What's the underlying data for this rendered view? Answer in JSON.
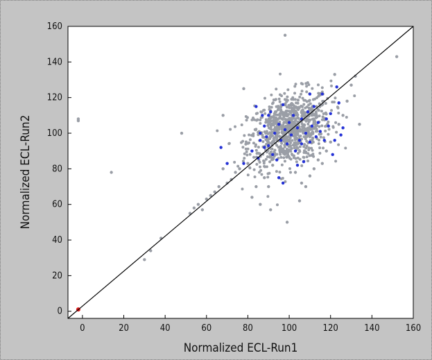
{
  "chart_data": {
    "type": "scatter",
    "title": "",
    "xlabel": "Normalized  ECL-Run1",
    "ylabel": "Normalized  ECL-Run2",
    "xlim": [
      -7,
      160
    ],
    "ylim": [
      -4,
      160
    ],
    "xticks": [
      "0",
      "20",
      "40",
      "60",
      "80",
      "100",
      "120",
      "140",
      "160"
    ],
    "yticks": [
      "0",
      "20",
      "40",
      "60",
      "80",
      "100",
      "120",
      "140",
      "160"
    ],
    "grid": false,
    "reference_line": {
      "from": [
        -7,
        -4
      ],
      "to": [
        160,
        160
      ],
      "color": "#000000"
    },
    "series": [
      {
        "color": "#9a9ea6",
        "description_points": "dense cloud centered near (100,100)",
        "points": [
          [
            -2,
            108
          ],
          [
            -2,
            107
          ],
          [
            14,
            78
          ],
          [
            30,
            29
          ],
          [
            33,
            34
          ],
          [
            38,
            41
          ],
          [
            48,
            100
          ],
          [
            52,
            55
          ],
          [
            54,
            58
          ],
          [
            56,
            60
          ],
          [
            58,
            57
          ],
          [
            60,
            63
          ],
          [
            62,
            65
          ],
          [
            64,
            67
          ],
          [
            66,
            70
          ],
          [
            68,
            80
          ],
          [
            68,
            110
          ],
          [
            70,
            72
          ],
          [
            72,
            74
          ],
          [
            74,
            78
          ],
          [
            76,
            80
          ],
          [
            78,
            125
          ],
          [
            80,
            83
          ],
          [
            82,
            64
          ],
          [
            84,
            70
          ],
          [
            86,
            60
          ],
          [
            88,
            75
          ],
          [
            90,
            70
          ],
          [
            91,
            57
          ],
          [
            92,
            82
          ],
          [
            98,
            155
          ],
          [
            99,
            50
          ],
          [
            103,
            78
          ],
          [
            105,
            62
          ],
          [
            106,
            72
          ],
          [
            108,
            70
          ],
          [
            110,
            76
          ],
          [
            112,
            80
          ],
          [
            114,
            85
          ],
          [
            116,
            83
          ],
          [
            118,
            90
          ],
          [
            120,
            95
          ],
          [
            122,
            133
          ],
          [
            124,
            105
          ],
          [
            126,
            110
          ],
          [
            128,
            118
          ],
          [
            130,
            127
          ],
          [
            132,
            132
          ],
          [
            134,
            105
          ],
          [
            152,
            143
          ]
        ],
        "cluster": {
          "center": [
            100,
            102
          ],
          "spread": [
            10,
            10
          ],
          "count": 900
        }
      },
      {
        "color": "#2431d6",
        "points": [
          [
            67,
            92
          ],
          [
            70,
            83
          ],
          [
            78,
            83
          ],
          [
            82,
            90
          ],
          [
            84,
            115
          ],
          [
            85,
            86
          ],
          [
            86,
            96
          ],
          [
            87,
            110
          ],
          [
            88,
            104
          ],
          [
            89,
            98
          ],
          [
            90,
            93
          ],
          [
            91,
            112
          ],
          [
            92,
            88
          ],
          [
            93,
            100
          ],
          [
            94,
            85
          ],
          [
            95,
            105
          ],
          [
            96,
            96
          ],
          [
            97,
            116
          ],
          [
            98,
            102
          ],
          [
            99,
            94
          ],
          [
            100,
            106
          ],
          [
            101,
            99
          ],
          [
            102,
            110
          ],
          [
            103,
            90
          ],
          [
            104,
            103
          ],
          [
            105,
            96
          ],
          [
            106,
            108
          ],
          [
            107,
            84
          ],
          [
            108,
            100
          ],
          [
            109,
            112
          ],
          [
            110,
            95
          ],
          [
            111,
            104
          ],
          [
            112,
            115
          ],
          [
            113,
            98
          ],
          [
            114,
            106
          ],
          [
            115,
            101
          ],
          [
            116,
            122
          ],
          [
            117,
            96
          ],
          [
            118,
            108
          ],
          [
            119,
            104
          ],
          [
            120,
            111
          ],
          [
            121,
            88
          ],
          [
            122,
            96
          ],
          [
            123,
            126
          ],
          [
            124,
            117
          ],
          [
            125,
            99
          ],
          [
            126,
            103
          ],
          [
            95,
            75
          ],
          [
            97,
            72
          ],
          [
            88,
            92
          ],
          [
            86,
            100
          ],
          [
            90,
            110
          ],
          [
            110,
            122
          ],
          [
            106,
            94
          ],
          [
            104,
            82
          ]
        ]
      },
      {
        "color": "#e01818",
        "points": [
          [
            -2,
            1
          ]
        ]
      }
    ]
  }
}
